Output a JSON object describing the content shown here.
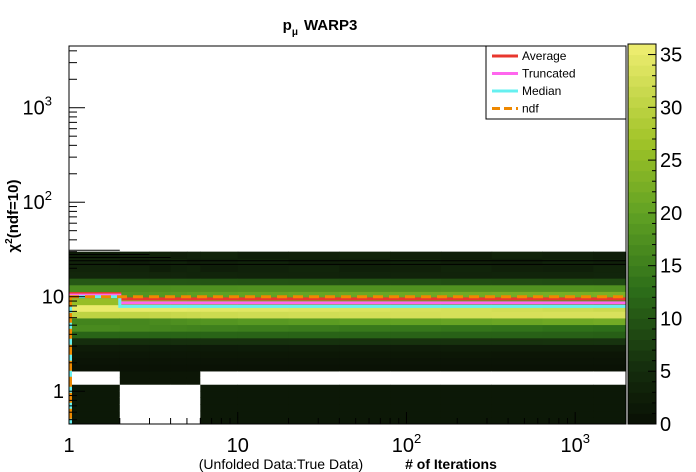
{
  "chart_data": {
    "type": "heatmap",
    "title": "p",
    "title_subscript": "μ",
    "title_suffix": "WARP3",
    "ylabel": "χ",
    "ylabel_sup": "2",
    "ylabel_suffix": "(ndf=10)",
    "xlabel_prefix": "(Unfolded Data:True Data)",
    "xlabel": "# of Iterations",
    "x_scale": "log",
    "y_scale": "log",
    "xlim": [
      1,
      2000
    ],
    "ylim": [
      0.45,
      4500
    ],
    "x_ticks": [
      {
        "value": 1,
        "label": "1"
      },
      {
        "value": 10,
        "label": "10"
      },
      {
        "value": 100,
        "label": "10",
        "sup": "2"
      },
      {
        "value": 1000,
        "label": "10",
        "sup": "3"
      }
    ],
    "y_ticks": [
      {
        "value": 1,
        "label": "1"
      },
      {
        "value": 10,
        "label": "10"
      },
      {
        "value": 100,
        "label": "10",
        "sup": "2"
      },
      {
        "value": 1000,
        "label": "10",
        "sup": "3"
      }
    ],
    "z_range": [
      0,
      36
    ],
    "z_ticks": [
      "0",
      "5",
      "10",
      "15",
      "20",
      "25",
      "30",
      "35"
    ],
    "legend_position": "top-right",
    "series": [
      {
        "name": "Average",
        "color": "#e8372e",
        "style": "solid",
        "x": [
          1,
          2,
          2000
        ],
        "y": [
          10.8,
          9.5,
          9.3
        ]
      },
      {
        "name": "Truncated",
        "color": "#ff66ee",
        "style": "solid",
        "x": [
          1,
          2,
          2000
        ],
        "y": [
          10.4,
          8.6,
          8.6
        ]
      },
      {
        "name": "Median",
        "color": "#66f0f0",
        "style": "solid",
        "x": [
          1,
          2,
          2000
        ],
        "y": [
          10.0,
          7.9,
          7.9
        ]
      },
      {
        "name": "ndf",
        "color": "#ee8800",
        "style": "dashed",
        "x": [
          1,
          2000
        ],
        "y": [
          10,
          10
        ]
      }
    ]
  }
}
